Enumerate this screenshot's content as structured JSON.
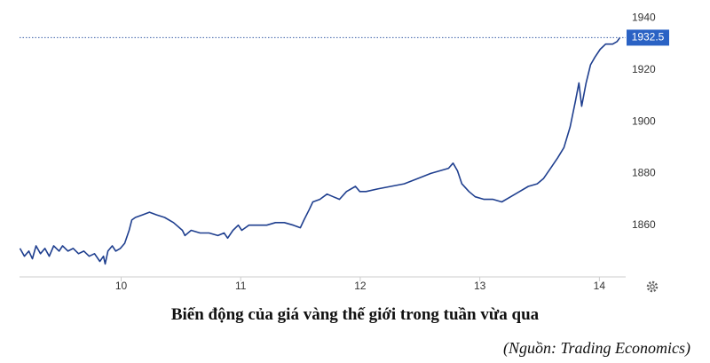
{
  "chart_data": {
    "type": "line",
    "caption": "Biến động của giá vàng thế giới trong tuần vừa qua",
    "source": "(Nguồn: Trading Economics)",
    "color": "#1f3f8f",
    "current_value": 1932.5,
    "x": [
      9.154,
      9.191,
      9.228,
      9.258,
      9.288,
      9.325,
      9.362,
      9.399,
      9.436,
      9.481,
      9.51,
      9.555,
      9.599,
      9.644,
      9.688,
      9.733,
      9.777,
      9.822,
      9.852,
      9.866,
      9.889,
      9.926,
      9.955,
      9.993,
      10.03,
      10.067,
      10.089,
      10.119,
      10.178,
      10.237,
      10.297,
      10.364,
      10.438,
      10.512,
      10.534,
      10.586,
      10.66,
      10.735,
      10.809,
      10.861,
      10.891,
      10.935,
      10.98,
      11.009,
      11.069,
      11.143,
      11.217,
      11.291,
      11.365,
      11.44,
      11.499,
      11.529,
      11.573,
      11.603,
      11.662,
      11.722,
      11.774,
      11.826,
      11.885,
      11.96,
      11.996,
      12.048,
      12.145,
      12.256,
      12.367,
      12.479,
      12.59,
      12.664,
      12.738,
      12.776,
      12.813,
      12.85,
      12.909,
      12.961,
      13.035,
      13.11,
      13.184,
      13.258,
      13.332,
      13.406,
      13.48,
      13.532,
      13.592,
      13.651,
      13.703,
      13.755,
      13.8,
      13.829,
      13.852,
      13.889,
      13.926,
      13.963,
      14.007,
      14.052,
      14.111,
      14.148,
      14.171
    ],
    "values": [
      1851,
      1848,
      1850,
      1847,
      1852,
      1849,
      1851,
      1848,
      1852,
      1850,
      1852,
      1850,
      1851,
      1849,
      1850,
      1848,
      1849,
      1846,
      1848,
      1845,
      1850,
      1852,
      1850,
      1851,
      1853,
      1858,
      1862,
      1863,
      1864,
      1865,
      1864,
      1863,
      1861,
      1858,
      1856,
      1858,
      1857,
      1857,
      1856,
      1857,
      1855,
      1858,
      1860,
      1858,
      1860,
      1860,
      1860,
      1861,
      1861,
      1860,
      1859,
      1862,
      1866,
      1869,
      1870,
      1872,
      1871,
      1870,
      1873,
      1875,
      1873,
      1873,
      1874,
      1875,
      1876,
      1878,
      1880,
      1881,
      1882,
      1884,
      1881,
      1876,
      1873,
      1871,
      1870,
      1870,
      1869,
      1871,
      1873,
      1875,
      1876,
      1878,
      1882,
      1886,
      1890,
      1898,
      1908,
      1915,
      1906,
      1915,
      1922,
      1925,
      1928,
      1930,
      1930,
      1931,
      1932.5
    ],
    "xlim": [
      9.15,
      14.22
    ],
    "xticks": [
      10,
      11,
      12,
      13,
      14
    ],
    "ylim": [
      1840,
      1945
    ],
    "yticks": [
      1860,
      1880,
      1900,
      1920,
      1940
    ]
  }
}
